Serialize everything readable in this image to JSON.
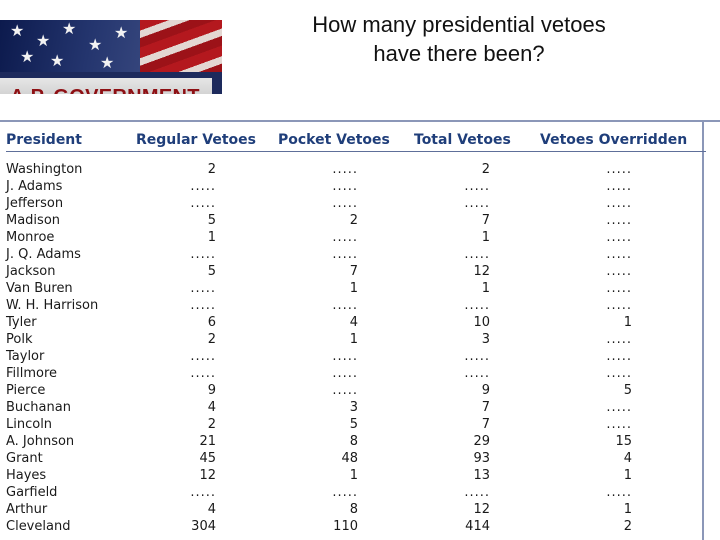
{
  "banner": {
    "title": "A.P. GOVERNMENT"
  },
  "heading": {
    "line1": "How many presidential vetoes",
    "line2": "have there been?"
  },
  "table": {
    "headers": [
      "President",
      "Regular Vetoes",
      "Pocket Vetoes",
      "Total Vetoes",
      "Vetoes Overridden"
    ],
    "rows": [
      [
        "Washington",
        "2",
        ".....",
        "2",
        "....."
      ],
      [
        "J. Adams",
        ".....",
        ".....",
        ".....",
        "....."
      ],
      [
        "Jefferson",
        ".....",
        ".....",
        ".....",
        "....."
      ],
      [
        "Madison",
        "5",
        "2",
        "7",
        "....."
      ],
      [
        "Monroe",
        "1",
        ".....",
        "1",
        "....."
      ],
      [
        "J. Q. Adams",
        ".....",
        ".....",
        ".....",
        "....."
      ],
      [
        "Jackson",
        "5",
        "7",
        "12",
        "....."
      ],
      [
        "Van Buren",
        ".....",
        "1",
        "1",
        "....."
      ],
      [
        "W. H. Harrison",
        ".....",
        ".....",
        ".....",
        "....."
      ],
      [
        "Tyler",
        "6",
        "4",
        "10",
        "1"
      ],
      [
        "Polk",
        "2",
        "1",
        "3",
        "....."
      ],
      [
        "Taylor",
        ".....",
        ".....",
        ".....",
        "....."
      ],
      [
        "Fillmore",
        ".....",
        ".....",
        ".....",
        "....."
      ],
      [
        "Pierce",
        "9",
        ".....",
        "9",
        "5"
      ],
      [
        "Buchanan",
        "4",
        "3",
        "7",
        "....."
      ],
      [
        "Lincoln",
        "2",
        "5",
        "7",
        "....."
      ],
      [
        "A. Johnson",
        "21",
        "8",
        "29",
        "15"
      ],
      [
        "Grant",
        "45",
        "48",
        "93",
        "4"
      ],
      [
        "Hayes",
        "12",
        "1",
        "13",
        "1"
      ],
      [
        "Garfield",
        ".....",
        ".....",
        ".....",
        "....."
      ],
      [
        "Arthur",
        "4",
        "8",
        "12",
        "1"
      ],
      [
        "Cleveland",
        "304",
        "110",
        "414",
        "2"
      ]
    ]
  },
  "colors": {
    "header_text": "#1f3e7a",
    "banner_red": "#8e1014",
    "frame": "#8b97b8"
  }
}
